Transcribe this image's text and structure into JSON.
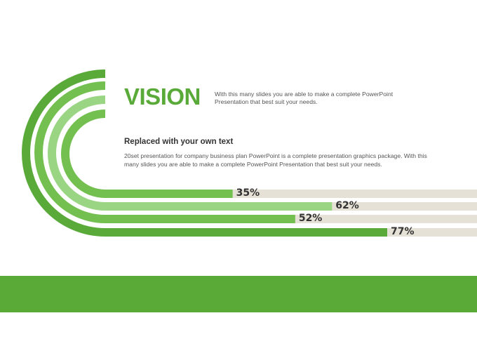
{
  "slide": {
    "title": "VISION",
    "title_description": "With this many slides you are able to make a complete PowerPoint Presentation that best suit your needs.",
    "subheading": "Replaced with your own text",
    "body": "20set presentation for company business plan PowerPoint is a complete presentation graphics package. With this many slides you are able to make a complete PowerPoint Presentation that best suit your needs."
  },
  "colors": {
    "dark_green": "#5aaa3a",
    "mid_green": "#73bf4f",
    "light_green": "#9ad584",
    "track_beige": "#e5e1d6",
    "footer_green": "#5aaa38"
  },
  "chart_data": {
    "type": "bar",
    "values": [
      35,
      62,
      52,
      77
    ],
    "labels": [
      "35%",
      "62%",
      "52%",
      "77%"
    ],
    "ylim": [
      0,
      100
    ]
  }
}
